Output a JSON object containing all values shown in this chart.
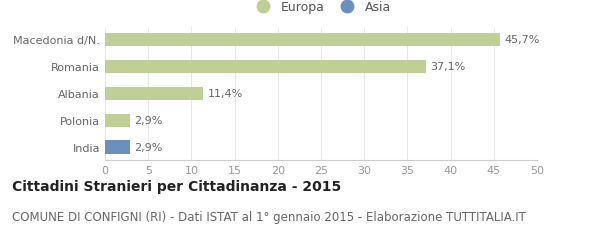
{
  "categories": [
    "Macedonia d/N.",
    "Romania",
    "Albania",
    "Polonia",
    "India"
  ],
  "values": [
    45.7,
    37.1,
    11.4,
    2.9,
    2.9
  ],
  "labels": [
    "45,7%",
    "37,1%",
    "11,4%",
    "2,9%",
    "2,9%"
  ],
  "colors": [
    "#bfcf96",
    "#bfcf96",
    "#bfcf96",
    "#bfcf96",
    "#6b8fbf"
  ],
  "legend_items": [
    {
      "label": "Europa",
      "color": "#bfcf96"
    },
    {
      "label": "Asia",
      "color": "#6b8fbf"
    }
  ],
  "xlim": [
    0,
    50
  ],
  "xticks": [
    0,
    5,
    10,
    15,
    20,
    25,
    30,
    35,
    40,
    45,
    50
  ],
  "title": "Cittadini Stranieri per Cittadinanza - 2015",
  "subtitle": "COMUNE DI CONFIGNI (RI) - Dati ISTAT al 1° gennaio 2015 - Elaborazione TUTTITALIA.IT",
  "background_color": "#ffffff",
  "bar_height": 0.5,
  "title_fontsize": 10,
  "subtitle_fontsize": 8.5,
  "label_fontsize": 8,
  "tick_fontsize": 8
}
